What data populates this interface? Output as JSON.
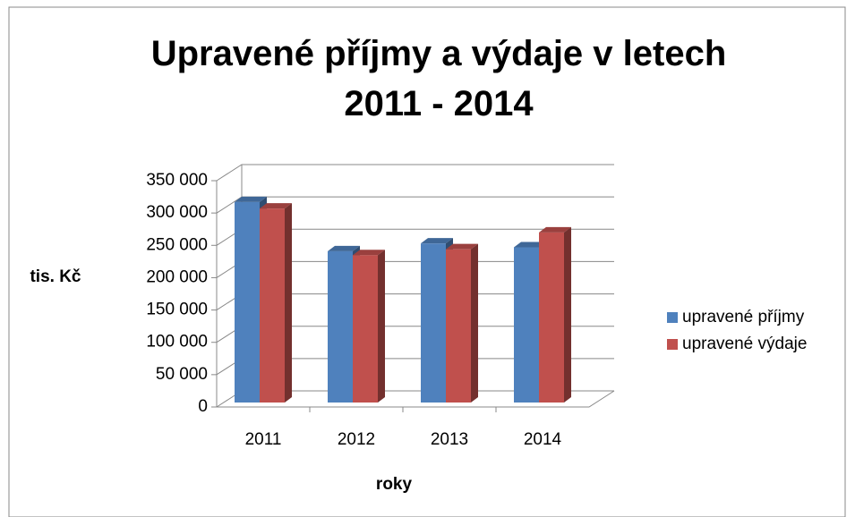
{
  "chart_data": {
    "type": "bar3d",
    "title": "Upravené příjmy a výdaje v letech 2011 - 2014",
    "y_label": "tis. Kč",
    "x_label": "roky",
    "categories": [
      "2011",
      "2012",
      "2013",
      "2014"
    ],
    "series": [
      {
        "name": "upravené příjmy",
        "color": "#4f81bd",
        "values": [
          310000,
          234000,
          246000,
          240000
        ]
      },
      {
        "name": "upravené výdaje",
        "color": "#c0504d",
        "values": [
          300000,
          228000,
          237000,
          263000
        ]
      }
    ],
    "ylim": [
      0,
      350000
    ],
    "yticks": [
      0,
      {
        "value": 50000,
        "label": "50 000"
      },
      {
        "value": 100000,
        "label": "100 000"
      },
      {
        "value": 150000,
        "label": "150 000"
      },
      {
        "value": 200000,
        "label": "200 000"
      },
      {
        "value": 250000,
        "label": "250 000"
      },
      {
        "value": 300000,
        "label": "300 000"
      },
      {
        "value": 350000,
        "label": "350 000"
      }
    ],
    "grid": true,
    "legend": "right"
  }
}
